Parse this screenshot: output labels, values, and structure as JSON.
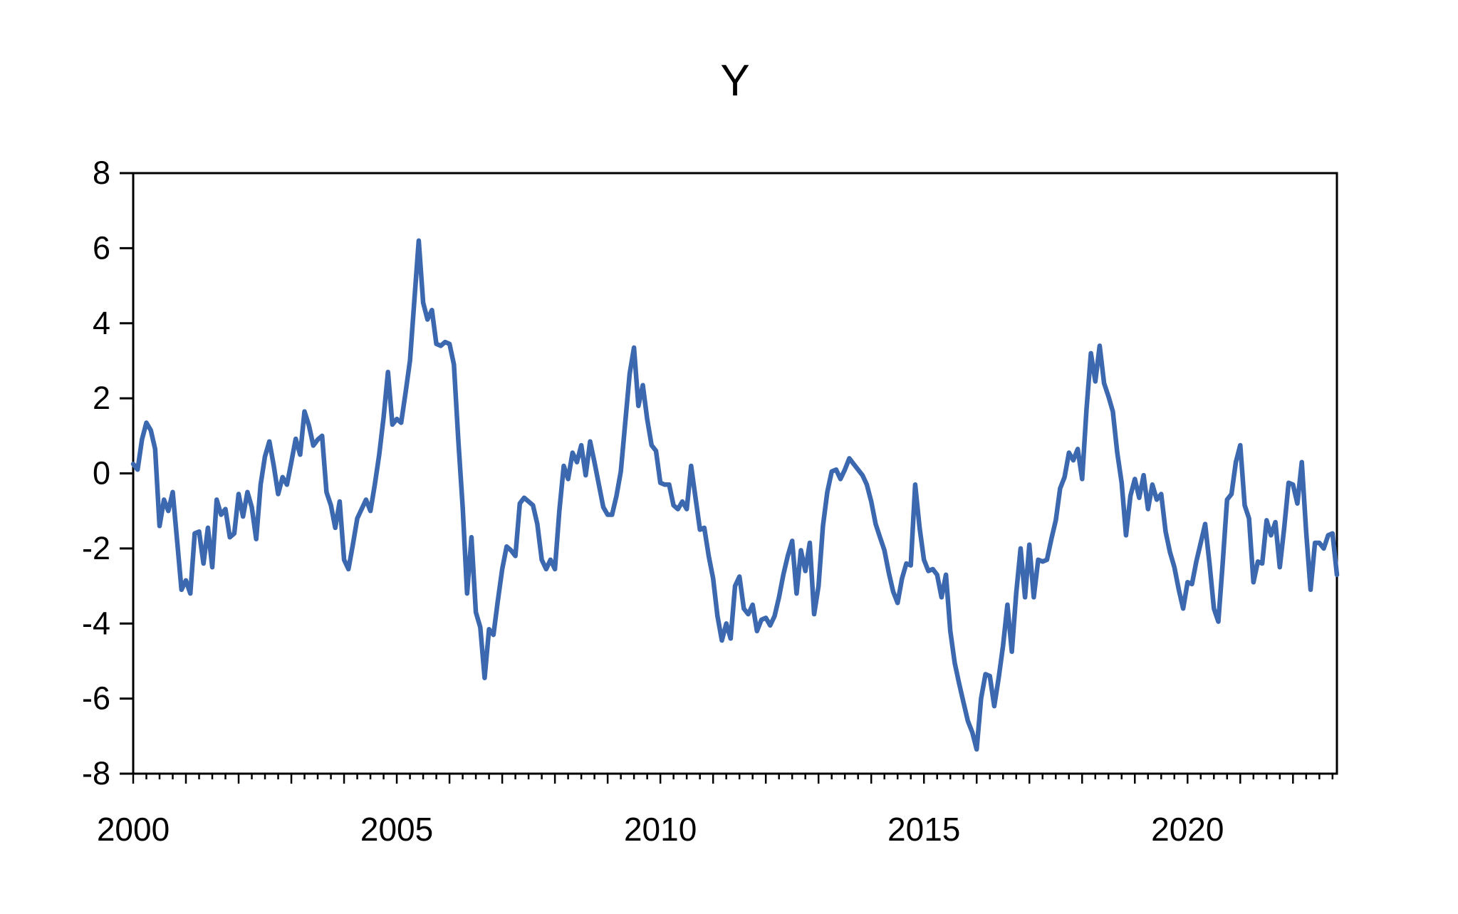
{
  "title": "Y",
  "chart_data": {
    "type": "line",
    "title": "Y",
    "series": [
      {
        "name": "Y",
        "start_year": 2000,
        "start_month": 1,
        "frequency": "monthly",
        "values": [
          0.25,
          0.1,
          0.9,
          1.35,
          1.15,
          0.65,
          -1.4,
          -0.7,
          -1.0,
          -0.5,
          -1.8,
          -3.1,
          -2.85,
          -3.2,
          -1.6,
          -1.55,
          -2.4,
          -1.45,
          -2.5,
          -0.7,
          -1.1,
          -0.95,
          -1.7,
          -1.6,
          -0.55,
          -1.15,
          -0.5,
          -0.9,
          -1.75,
          -0.3,
          0.45,
          0.85,
          0.2,
          -0.55,
          -0.1,
          -0.3,
          0.3,
          0.92,
          0.5,
          1.65,
          1.28,
          0.74,
          0.9,
          1.0,
          -0.5,
          -0.85,
          -1.45,
          -0.75,
          -2.3,
          -2.55,
          -1.9,
          -1.2,
          -0.95,
          -0.7,
          -1.0,
          -0.3,
          0.5,
          1.5,
          2.7,
          1.3,
          1.45,
          1.35,
          2.15,
          3.0,
          4.6,
          6.2,
          4.55,
          4.1,
          4.35,
          3.45,
          3.4,
          3.5,
          3.45,
          2.9,
          0.9,
          -0.9,
          -3.2,
          -1.7,
          -3.7,
          -4.1,
          -5.45,
          -4.15,
          -4.3,
          -3.4,
          -2.55,
          -1.95,
          -2.05,
          -2.2,
          -0.8,
          -0.65,
          -0.75,
          -0.85,
          -1.35,
          -2.3,
          -2.55,
          -2.3,
          -2.55,
          -1.0,
          0.2,
          -0.15,
          0.55,
          0.3,
          0.75,
          -0.05,
          0.85,
          0.3,
          -0.3,
          -0.9,
          -1.1,
          -1.1,
          -0.6,
          0.05,
          1.35,
          2.65,
          3.35,
          1.8,
          2.35,
          1.45,
          0.75,
          0.6,
          -0.25,
          -0.3,
          -0.3,
          -0.85,
          -0.95,
          -0.75,
          -0.95,
          0.2,
          -0.65,
          -1.5,
          -1.45,
          -2.2,
          -2.8,
          -3.8,
          -4.45,
          -4.0,
          -4.4,
          -3.0,
          -2.75,
          -3.6,
          -3.75,
          -3.5,
          -4.2,
          -3.9,
          -3.85,
          -4.05,
          -3.8,
          -3.3,
          -2.7,
          -2.2,
          -1.8,
          -3.2,
          -2.05,
          -2.6,
          -1.85,
          -3.75,
          -3.0,
          -1.4,
          -0.5,
          0.05,
          0.1,
          -0.15,
          0.1,
          0.4,
          0.25,
          0.1,
          -0.05,
          -0.3,
          -0.75,
          -1.35,
          -1.7,
          -2.05,
          -2.65,
          -3.15,
          -3.45,
          -2.8,
          -2.4,
          -2.45,
          -0.3,
          -1.45,
          -2.3,
          -2.6,
          -2.55,
          -2.7,
          -3.3,
          -2.7,
          -4.2,
          -5.05,
          -5.6,
          -6.1,
          -6.6,
          -6.9,
          -7.35,
          -6.0,
          -5.35,
          -5.4,
          -6.2,
          -5.45,
          -4.6,
          -3.5,
          -4.75,
          -3.2,
          -2.0,
          -3.3,
          -1.9,
          -3.3,
          -2.3,
          -2.35,
          -2.3,
          -1.75,
          -1.25,
          -0.4,
          -0.1,
          0.55,
          0.35,
          0.65,
          -0.15,
          1.7,
          3.2,
          2.45,
          3.4,
          2.4,
          2.05,
          1.65,
          0.55,
          -0.25,
          -1.65,
          -0.6,
          -0.15,
          -0.65,
          -0.05,
          -0.95,
          -0.3,
          -0.7,
          -0.55,
          -1.55,
          -2.1,
          -2.5,
          -3.1,
          -3.6,
          -2.9,
          -2.95,
          -2.35,
          -1.85,
          -1.35,
          -2.4,
          -3.6,
          -3.95,
          -2.4,
          -0.7,
          -0.55,
          0.3,
          0.75,
          -0.85,
          -1.2,
          -2.9,
          -2.35,
          -2.4,
          -1.25,
          -1.65,
          -1.3,
          -2.5,
          -1.45,
          -0.25,
          -0.3,
          -0.8,
          0.3,
          -1.55,
          -3.1,
          -1.85,
          -1.85,
          -2.0,
          -1.65,
          -1.6,
          -2.7
        ]
      }
    ],
    "ylim": [
      -8,
      8
    ],
    "y_ticks": [
      8,
      6,
      4,
      2,
      0,
      -2,
      -4,
      -6,
      -8
    ],
    "x_label_years": [
      2000,
      2005,
      2010,
      2015,
      2020
    ],
    "x_major_tick_interval_years": 1,
    "x_minor_tick_interval_months": 3,
    "grid": "off",
    "legend": "none",
    "line_color": "#3B68AE",
    "axis_color": "#000000",
    "background_color": "#ffffff"
  }
}
